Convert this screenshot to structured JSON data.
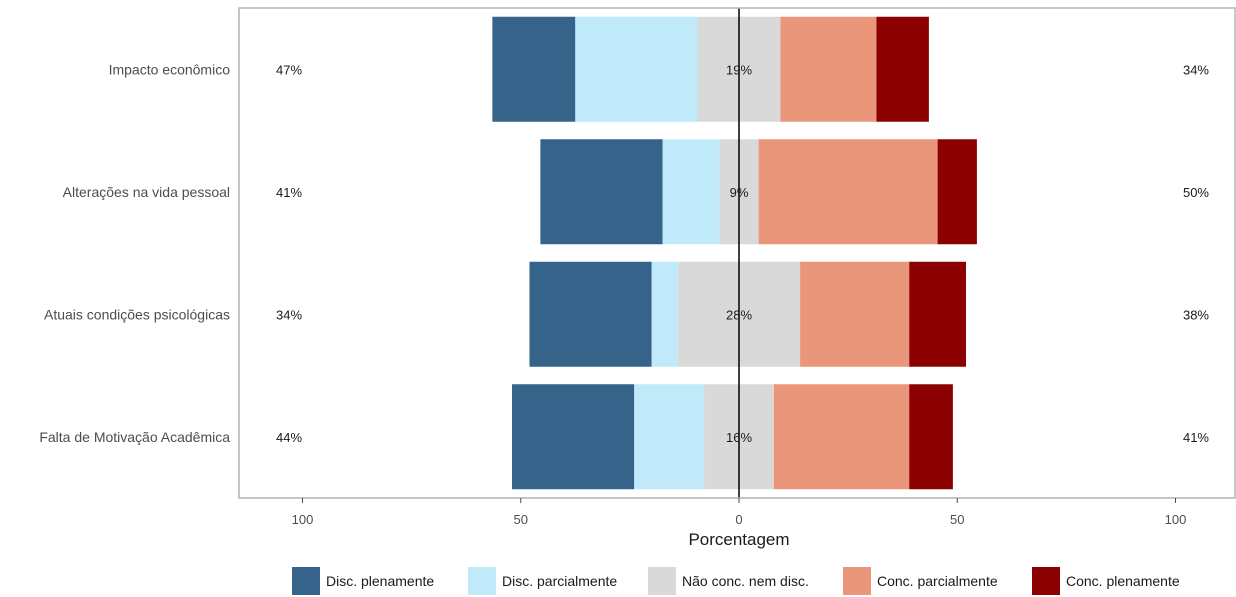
{
  "chart_data": {
    "type": "bar",
    "orientation": "horizontal-diverging",
    "xlabel": "Porcentagem",
    "xlim": [
      -100,
      100
    ],
    "xticks": [
      -100,
      -50,
      0,
      50,
      100
    ],
    "xtick_labels": [
      "100",
      "50",
      "0",
      "50",
      "100"
    ],
    "grid": false,
    "legend_position": "bottom",
    "categories": [
      "Impacto econômico",
      "Alterações na vida pessoal",
      "Atuais condições psicológicas",
      "Falta de Motivação Acadêmica"
    ],
    "series": [
      {
        "name": "Disc. plenamente",
        "color": "#35638a",
        "values": [
          19,
          28,
          28,
          28
        ]
      },
      {
        "name": "Disc. parcialmente",
        "color": "#c0eaf9",
        "values": [
          28,
          13,
          6,
          16
        ]
      },
      {
        "name": "Não conc. nem disc.",
        "color": "#d9d9d9",
        "values": [
          19,
          9,
          28,
          16
        ]
      },
      {
        "name": "Conc. parcialmente",
        "color": "#e9967a",
        "values": [
          22,
          41,
          25,
          31
        ]
      },
      {
        "name": "Conc. plenamente",
        "color": "#8b0000",
        "values": [
          12,
          9,
          13,
          10
        ]
      }
    ],
    "left_pct_labels": [
      "47%",
      "41%",
      "34%",
      "44%"
    ],
    "center_pct_labels": [
      "19%",
      "9%",
      "28%",
      "16%"
    ],
    "right_pct_labels": [
      "34%",
      "50%",
      "38%",
      "41%"
    ]
  }
}
